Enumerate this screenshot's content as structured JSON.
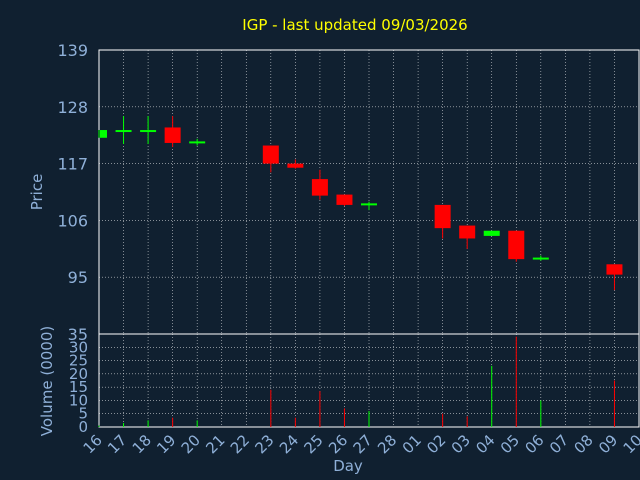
{
  "colors": {
    "background": "#102030",
    "title": "#ffff00",
    "axis_text": "#8fb0d8",
    "label": "#8fb0d8",
    "plot_border": "#ffffff",
    "grid": "#ffffff",
    "up": "#00ff00",
    "down": "#ff0000"
  },
  "chart_data": [
    {
      "type": "candlestick",
      "title": "IGP - last updated 09/03/2026",
      "ylabel": "Price",
      "ylim": [
        84,
        139
      ],
      "yticks": [
        95,
        106,
        117,
        128,
        139
      ],
      "grid": true,
      "x_ticks": [
        "16",
        "17",
        "18",
        "19",
        "20",
        "21",
        "22",
        "23",
        "24",
        "25",
        "26",
        "27",
        "28",
        "01",
        "02",
        "03",
        "04",
        "05",
        "06",
        "07",
        "08",
        "09",
        "10"
      ],
      "candles": [
        {
          "x": "16",
          "open": 122.0,
          "close": 123.5,
          "high": 123.5,
          "low": 122.0
        },
        {
          "x": "17",
          "open": 123.2,
          "close": 123.5,
          "high": 126.2,
          "low": 120.8
        },
        {
          "x": "18",
          "open": 123.2,
          "close": 123.5,
          "high": 126.2,
          "low": 120.8
        },
        {
          "x": "19",
          "open": 124.0,
          "close": 121.0,
          "high": 126.2,
          "low": 120.2
        },
        {
          "x": "20",
          "open": 121.0,
          "close": 121.3,
          "high": 121.8,
          "low": 120.5
        },
        {
          "x": "23",
          "open": 120.5,
          "close": 117.0,
          "high": 120.5,
          "low": 115.3
        },
        {
          "x": "24",
          "open": 117.0,
          "close": 116.2,
          "high": 117.8,
          "low": 116.0
        },
        {
          "x": "25",
          "open": 114.0,
          "close": 110.8,
          "high": 115.8,
          "low": 110.0
        },
        {
          "x": "26",
          "open": 111.0,
          "close": 109.0,
          "high": 111.0,
          "low": 108.8
        },
        {
          "x": "27",
          "open": 109.0,
          "close": 109.3,
          "high": 109.6,
          "low": 108.0
        },
        {
          "x": "02",
          "open": 109.0,
          "close": 104.5,
          "high": 109.0,
          "low": 102.5
        },
        {
          "x": "03",
          "open": 105.0,
          "close": 102.5,
          "high": 105.0,
          "low": 100.5
        },
        {
          "x": "04",
          "open": 103.0,
          "close": 104.0,
          "high": 104.0,
          "low": 103.0
        },
        {
          "x": "05",
          "open": 104.0,
          "close": 98.5,
          "high": 104.0,
          "low": 98.0
        },
        {
          "x": "06",
          "open": 98.5,
          "close": 98.8,
          "high": 99.2,
          "low": 98.2
        },
        {
          "x": "09",
          "open": 97.5,
          "close": 95.5,
          "high": 97.5,
          "low": 92.5
        }
      ]
    },
    {
      "type": "bar",
      "ylabel": "Volume (0000)",
      "xlabel": "Day",
      "ylim": [
        0,
        35
      ],
      "yticks": [
        0,
        5,
        10,
        15,
        20,
        25,
        30,
        35
      ],
      "grid": true,
      "categories": [
        "16",
        "17",
        "18",
        "19",
        "20",
        "23",
        "24",
        "25",
        "26",
        "27",
        "02",
        "03",
        "04",
        "05",
        "06",
        "09"
      ],
      "values": [
        0.5,
        1.5,
        2.5,
        3.5,
        2.5,
        14,
        3.5,
        13.5,
        7,
        6,
        5,
        4,
        23,
        34,
        10,
        17.5
      ],
      "directions": [
        "up",
        "up",
        "up",
        "down",
        "up",
        "down",
        "down",
        "down",
        "down",
        "up",
        "down",
        "down",
        "up",
        "down",
        "up",
        "down"
      ]
    }
  ]
}
